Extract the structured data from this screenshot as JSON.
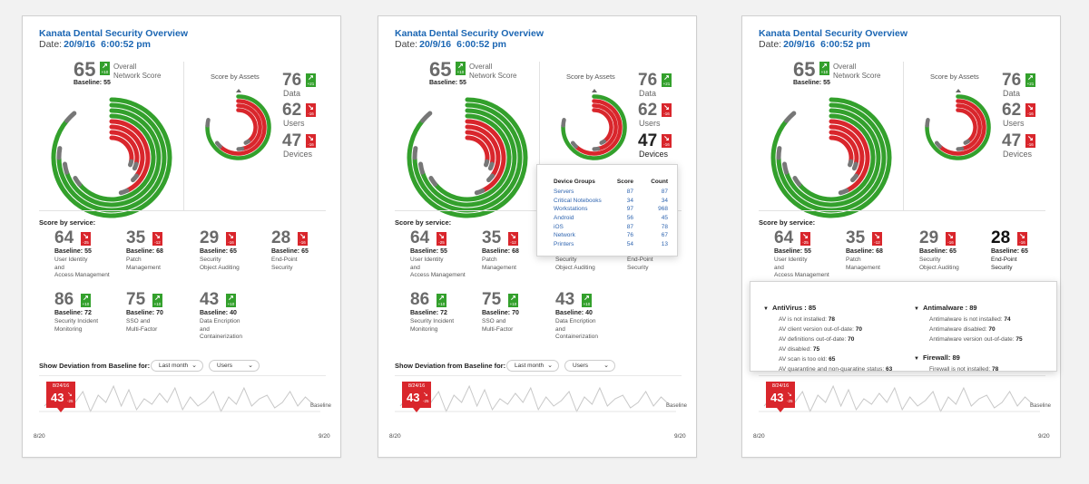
{
  "colors": {
    "accent": "#1b66b3",
    "good": "#33a02c",
    "bad": "#d9262c",
    "muted": "#6a6a6a"
  },
  "panels": [
    {
      "title": "Kanata Dental Security Overview",
      "date_label": "Date:",
      "date": "20/9/16",
      "time": "6:00:52 pm"
    },
    {
      "title": "Kanata Dental Security Overview",
      "date_label": "Date:",
      "date": "20/9/16",
      "time": "6:00:52 pm"
    },
    {
      "title": "Kanata Dental Security Overview",
      "date_label": "Date:",
      "date": "20/9/16",
      "time": "6:00:52 pm"
    }
  ],
  "overall": {
    "score": "65",
    "delta": "+10",
    "label_line1": "Overall",
    "label_line2": "Network Score",
    "baseline": "Baseline: 55",
    "icon": "arrow-up-icon"
  },
  "score_by_assets": {
    "title": "Score by Assets",
    "items": [
      {
        "score": "76",
        "delta": "+21",
        "label": "Data",
        "trend": "up"
      },
      {
        "score": "62",
        "delta": "-16",
        "label": "Users",
        "trend": "down"
      },
      {
        "score": "47",
        "delta": "-16",
        "label": "Devices",
        "trend": "down"
      }
    ]
  },
  "score_by_service": {
    "title": "Score by service:",
    "items": [
      {
        "score": "64",
        "delta": "-25",
        "trend": "down",
        "baseline": "Baseline: 55",
        "label_lines": [
          "User Identity",
          "and",
          "Access Management"
        ]
      },
      {
        "score": "35",
        "delta": "-12",
        "trend": "down",
        "baseline": "Baseline: 68",
        "label_lines": [
          "Patch",
          "Management"
        ]
      },
      {
        "score": "29",
        "delta": "-16",
        "trend": "down",
        "baseline": "Baseline: 65",
        "label_lines": [
          "Security",
          "Object Auditing"
        ]
      },
      {
        "score": "28",
        "delta": "-16",
        "trend": "down",
        "baseline": "Baseline: 65",
        "label_lines": [
          "End-Point",
          "Security"
        ]
      },
      {
        "score": "86",
        "delta": "+10",
        "trend": "up",
        "baseline": "Baseline: 72",
        "label_lines": [
          "Security Incident",
          "Monitoring"
        ]
      },
      {
        "score": "75",
        "delta": "+10",
        "trend": "up",
        "baseline": "Baseline: 70",
        "label_lines": [
          "SSO and",
          "Multi-Factor"
        ]
      },
      {
        "score": "43",
        "delta": "+10",
        "trend": "up",
        "baseline": "Baseline: 40",
        "label_lines": [
          "Data Encription",
          "and",
          "Containerization"
        ]
      }
    ]
  },
  "deviation": {
    "label": "Show Deviation from Baseline for:",
    "period": "Last month",
    "scope": "Users",
    "flag_date": "8/24/16",
    "flag_value": "43",
    "flag_delta": "-25",
    "baseline_label": "Baseline",
    "x_start": "8/20",
    "x_end": "9/20"
  },
  "device_groups": {
    "headers": [
      "Device Groups",
      "Score",
      "Count"
    ],
    "rows": [
      [
        "Servers",
        "87",
        "87"
      ],
      [
        "Critical Notebooks",
        "34",
        "34"
      ],
      [
        "Workstations",
        "97",
        "968"
      ],
      [
        "Android",
        "56",
        "45"
      ],
      [
        "iOS",
        "87",
        "78"
      ],
      [
        "Network",
        "76",
        "67"
      ],
      [
        "Printers",
        "54",
        "13"
      ]
    ]
  },
  "endpoint_detail": {
    "antivirus": {
      "title": "AntiVirus : 85",
      "rows": [
        {
          "label": "AV is not installed:",
          "value": "78"
        },
        {
          "label": "AV client version out-of-date:",
          "value": "70"
        },
        {
          "label": "AV definitions out-of-date:",
          "value": "70"
        },
        {
          "label": "AV disabled:",
          "value": "75"
        },
        {
          "label": "AV scan is too old:",
          "value": "65"
        },
        {
          "label": "AV quarantine and non-quaratine status:",
          "value": "63"
        }
      ]
    },
    "antimalware": {
      "title": "Antimalware : 89",
      "rows": [
        {
          "label": "Antimalware is not installed:",
          "value": "74"
        },
        {
          "label": "Antimalware disabled:",
          "value": "70"
        },
        {
          "label": "Antimalware version out-of-date:",
          "value": "75"
        }
      ]
    },
    "firewall": {
      "title": "Firewall: 89",
      "rows": [
        {
          "label": "Firewall is not installed:",
          "value": "78"
        }
      ]
    }
  }
}
